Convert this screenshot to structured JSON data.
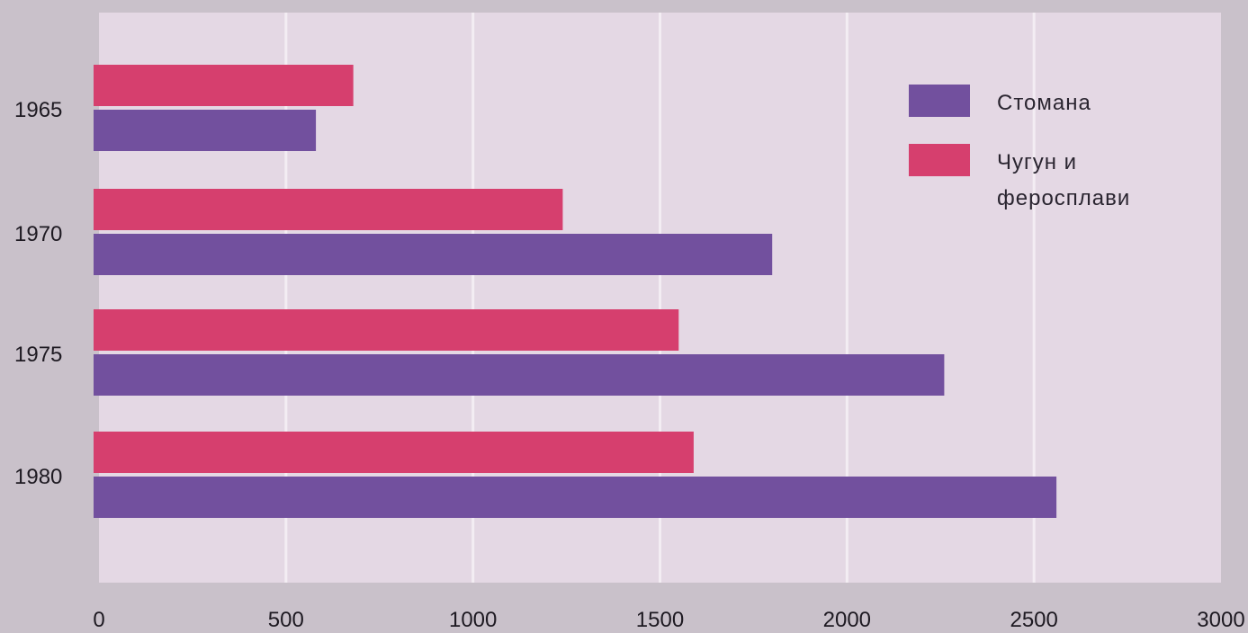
{
  "chart_data": {
    "type": "bar",
    "orientation": "horizontal",
    "categories": [
      "1965",
      "1970",
      "1975",
      "1980"
    ],
    "series": [
      {
        "name": "Чугун и феросплави",
        "color": "#d63f6e",
        "values": [
          680,
          1240,
          1550,
          1590
        ]
      },
      {
        "name": "Стомана",
        "color": "#72509e",
        "values": [
          580,
          1800,
          2260,
          2560
        ]
      }
    ],
    "x_ticks": [
      "0",
      "500",
      "1000",
      "1500",
      "2000",
      "2500",
      "3000"
    ],
    "xlim": [
      0,
      3000
    ],
    "grid": "vertical",
    "legend": {
      "placement": "top-right",
      "items": [
        {
          "series": 1,
          "lines": [
            "Стомана"
          ]
        },
        {
          "series": 0,
          "lines": [
            "Чугун и",
            "феросплави"
          ]
        }
      ]
    },
    "colors": {
      "plot_background": "#e4d8e4",
      "page_background": "#c9c1ca",
      "gridline": "#f3edf3"
    }
  }
}
